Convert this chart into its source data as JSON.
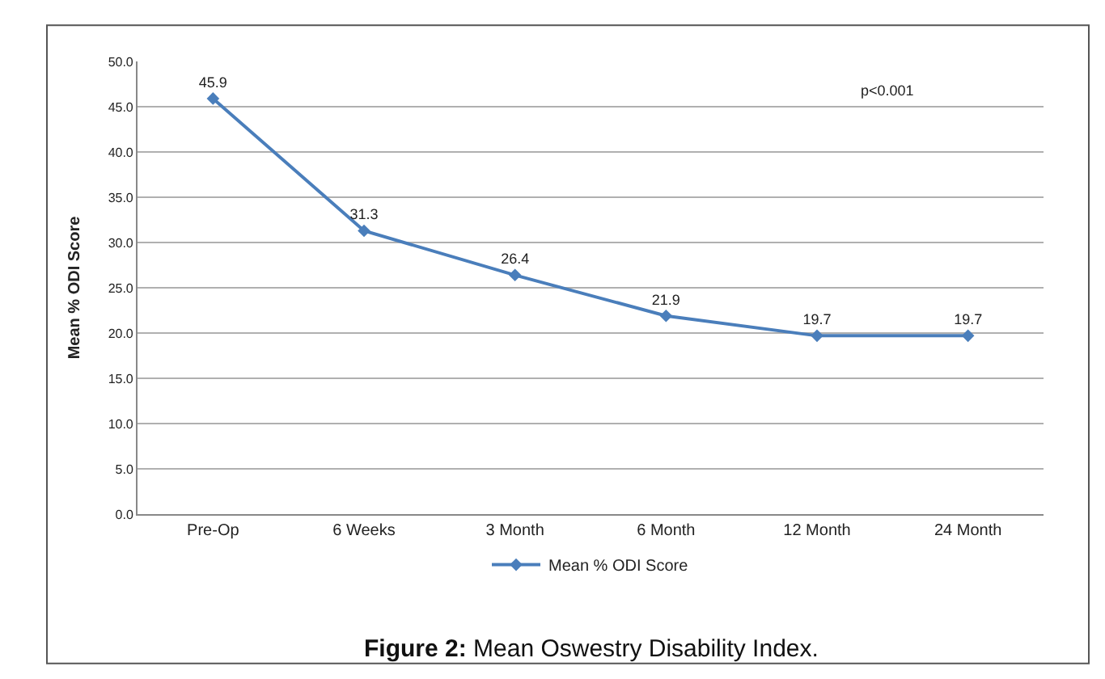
{
  "chart_data": {
    "type": "line",
    "ylabel": "Mean % ODI Score",
    "categories": [
      "Pre-Op",
      "6 Weeks",
      "3 Month",
      "6 Month",
      "12 Month",
      "24 Month"
    ],
    "series": [
      {
        "name": "Mean % ODI Score",
        "color": "#4a7ebb",
        "values": [
          45.9,
          31.3,
          26.4,
          21.9,
          19.7,
          19.7
        ]
      }
    ],
    "data_labels": true,
    "ylim": [
      0,
      50
    ],
    "yticks": [
      {
        "value": 0,
        "label": "0.0"
      },
      {
        "value": 5,
        "label": "5.0"
      },
      {
        "value": 10,
        "label": "10.0"
      },
      {
        "value": 15,
        "label": "15.0"
      },
      {
        "value": 20,
        "label": "20.0"
      },
      {
        "value": 25,
        "label": "25.0"
      },
      {
        "value": 30,
        "label": "30.0"
      },
      {
        "value": 35,
        "label": "35.0"
      },
      {
        "value": 40,
        "label": "40.0"
      },
      {
        "value": 45,
        "label": "45.0"
      },
      {
        "value": 50,
        "label": "50.0"
      }
    ],
    "grid": "y",
    "legend": "bottom",
    "marker": "diamond",
    "line_style": "solid",
    "annotations": [
      "p<0.001",
      "Figure 2: Mean Oswestry Disability Index."
    ]
  }
}
